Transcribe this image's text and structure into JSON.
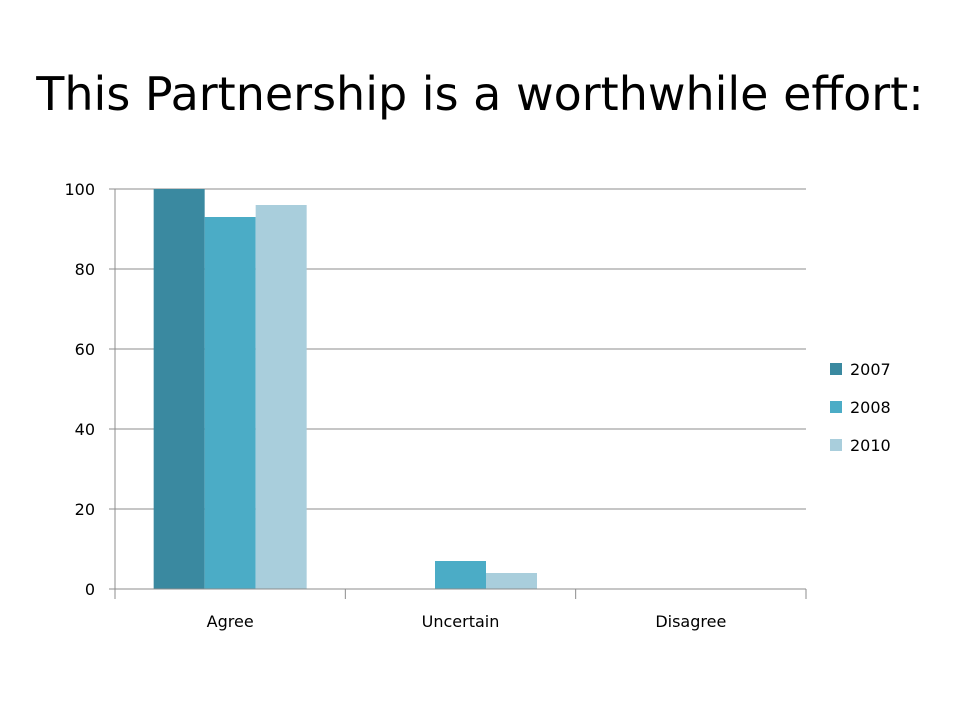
{
  "slide": {
    "title": "This Partnership is a worthwhile effort:"
  },
  "chart_data": {
    "type": "bar",
    "title": "",
    "xlabel": "",
    "ylabel": "",
    "categories": [
      "Agree",
      "Uncertain",
      "Disagree"
    ],
    "series": [
      {
        "name": "2007",
        "values": [
          100,
          0,
          0
        ],
        "color": "#3a89a0"
      },
      {
        "name": "2008",
        "values": [
          93,
          7,
          0
        ],
        "color": "#4bacc6"
      },
      {
        "name": "2010",
        "values": [
          96,
          4,
          0
        ],
        "color": "#a9cedc"
      }
    ],
    "ylim": [
      0,
      100
    ],
    "yticks": [
      "0",
      "20",
      "40",
      "60",
      "80",
      "100"
    ],
    "grid": true,
    "legend": "right",
    "colors": {
      "gridline": "#8c8c8c",
      "axis": "#8c8c8c"
    }
  }
}
